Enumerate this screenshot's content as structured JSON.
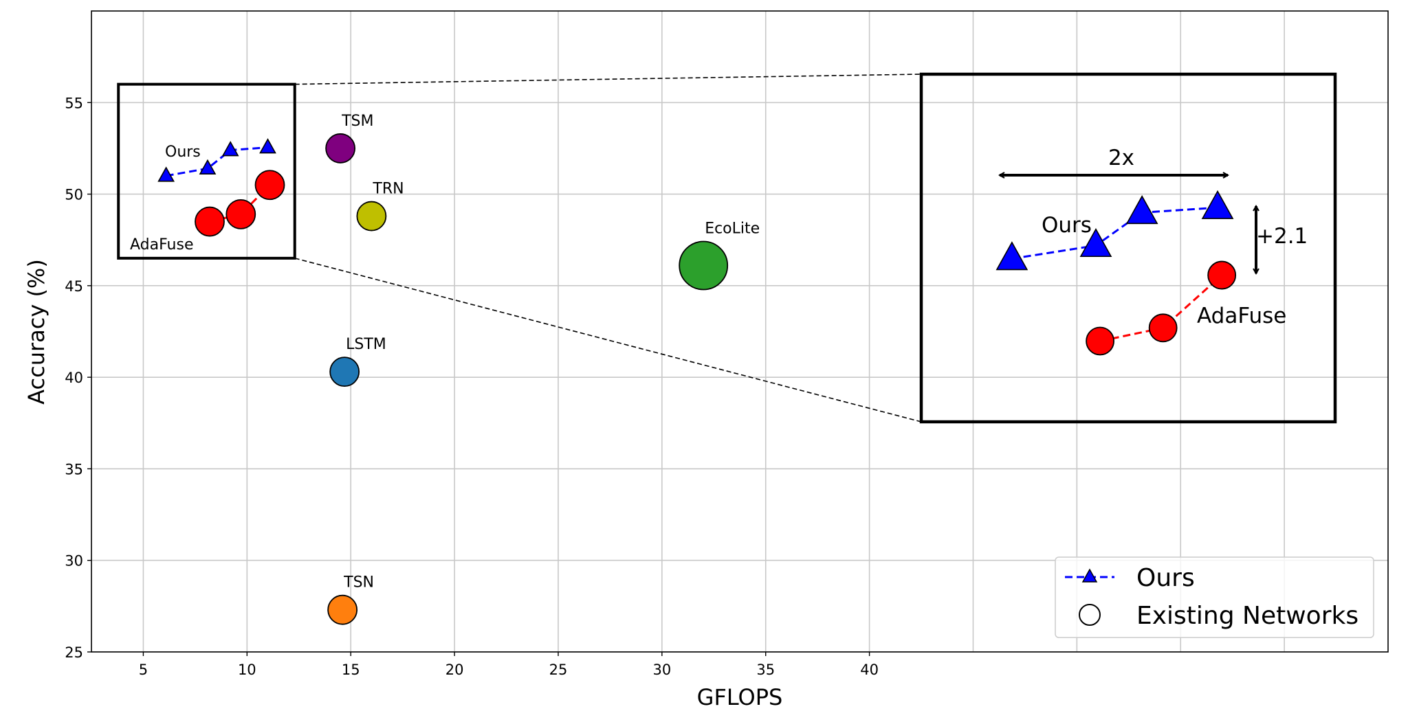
{
  "chart_data": {
    "type": "scatter",
    "xlabel": "GFLOPS",
    "ylabel": "Accuracy (%)",
    "xlim": [
      2.5,
      65
    ],
    "ylim": [
      25,
      60
    ],
    "xticks": [
      5,
      10,
      15,
      20,
      25,
      30,
      35,
      40
    ],
    "xgrid_extra": [
      45,
      50,
      55,
      60
    ],
    "yticks": [
      25,
      30,
      35,
      40,
      45,
      50,
      55
    ],
    "grid": true,
    "legend_position": "bottom-right",
    "legend": [
      {
        "label": "Ours",
        "marker": "triangle",
        "line": "dashed",
        "color": "#0000ff"
      },
      {
        "label": "Existing Networks",
        "marker": "circle",
        "color": "#ffffff"
      }
    ],
    "series": [
      {
        "name": "Ours",
        "marker": "triangle",
        "color": "#0000ff",
        "line": "dashed",
        "x": [
          6.1,
          8.1,
          9.2,
          11.0
        ],
        "y": [
          51.0,
          51.4,
          52.4,
          52.55
        ]
      },
      {
        "name": "AdaFuse",
        "marker": "circle",
        "color": "#ff0000",
        "line": "dashed",
        "x": [
          8.2,
          9.7,
          11.1
        ],
        "y": [
          48.5,
          48.9,
          50.5
        ]
      }
    ],
    "points": [
      {
        "label": "TSM",
        "x": 14.5,
        "y": 52.5,
        "color": "#7f007f"
      },
      {
        "label": "TRN",
        "x": 16.0,
        "y": 48.8,
        "color": "#bfbf00"
      },
      {
        "label": "EcoLite",
        "x": 32.0,
        "y": 46.1,
        "color": "#2ca02c"
      },
      {
        "label": "LSTM",
        "x": 14.7,
        "y": 40.3,
        "color": "#1f77b4"
      },
      {
        "label": "TSN",
        "x": 14.6,
        "y": 27.3,
        "color": "#ff7f0e"
      }
    ],
    "zoom_region": {
      "xlim": [
        3.8,
        12.3
      ],
      "ylim": [
        46.5,
        56.0
      ]
    },
    "inset": {
      "xlim": [
        3.94,
        13.8
      ],
      "ylim": [
        46.05,
        56.6
      ],
      "annotations": {
        "speedup": "2x",
        "gain": "+2.1",
        "ours_label": "Ours",
        "adafuse_label": "AdaFuse"
      }
    }
  }
}
